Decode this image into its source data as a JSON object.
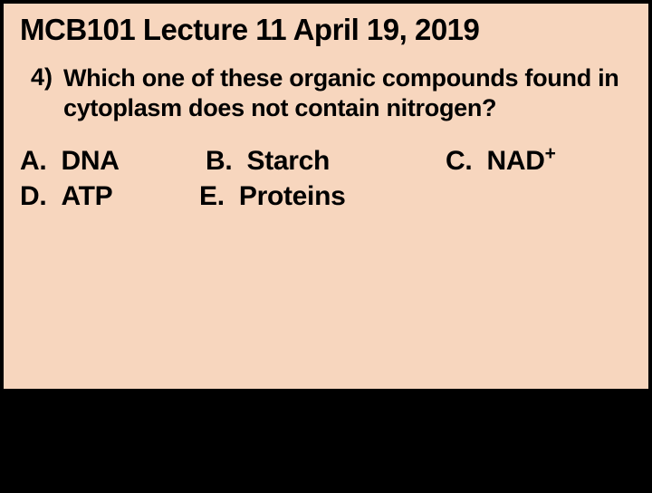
{
  "header": "MCB101 Lecture 11 April 19, 2019",
  "question": {
    "number": "4)",
    "text": "Which one of these organic compounds found in cytoplasm does not contain nitrogen?"
  },
  "answers": {
    "a_label": "A.",
    "a_text": "DNA",
    "b_label": "B.",
    "b_text": "Starch",
    "c_label": "C.",
    "c_text": "NAD",
    "c_sup": "+",
    "d_label": "D.",
    "d_text": "ATP",
    "e_label": "E.",
    "e_text": "Proteins"
  },
  "colors": {
    "background": "#f7d6be",
    "outer": "#000000",
    "text": "#000000"
  },
  "typography": {
    "header_fontsize": 33,
    "question_fontsize": 27,
    "answer_fontsize": 30,
    "font_weight": 900,
    "font_family": "Arial"
  }
}
